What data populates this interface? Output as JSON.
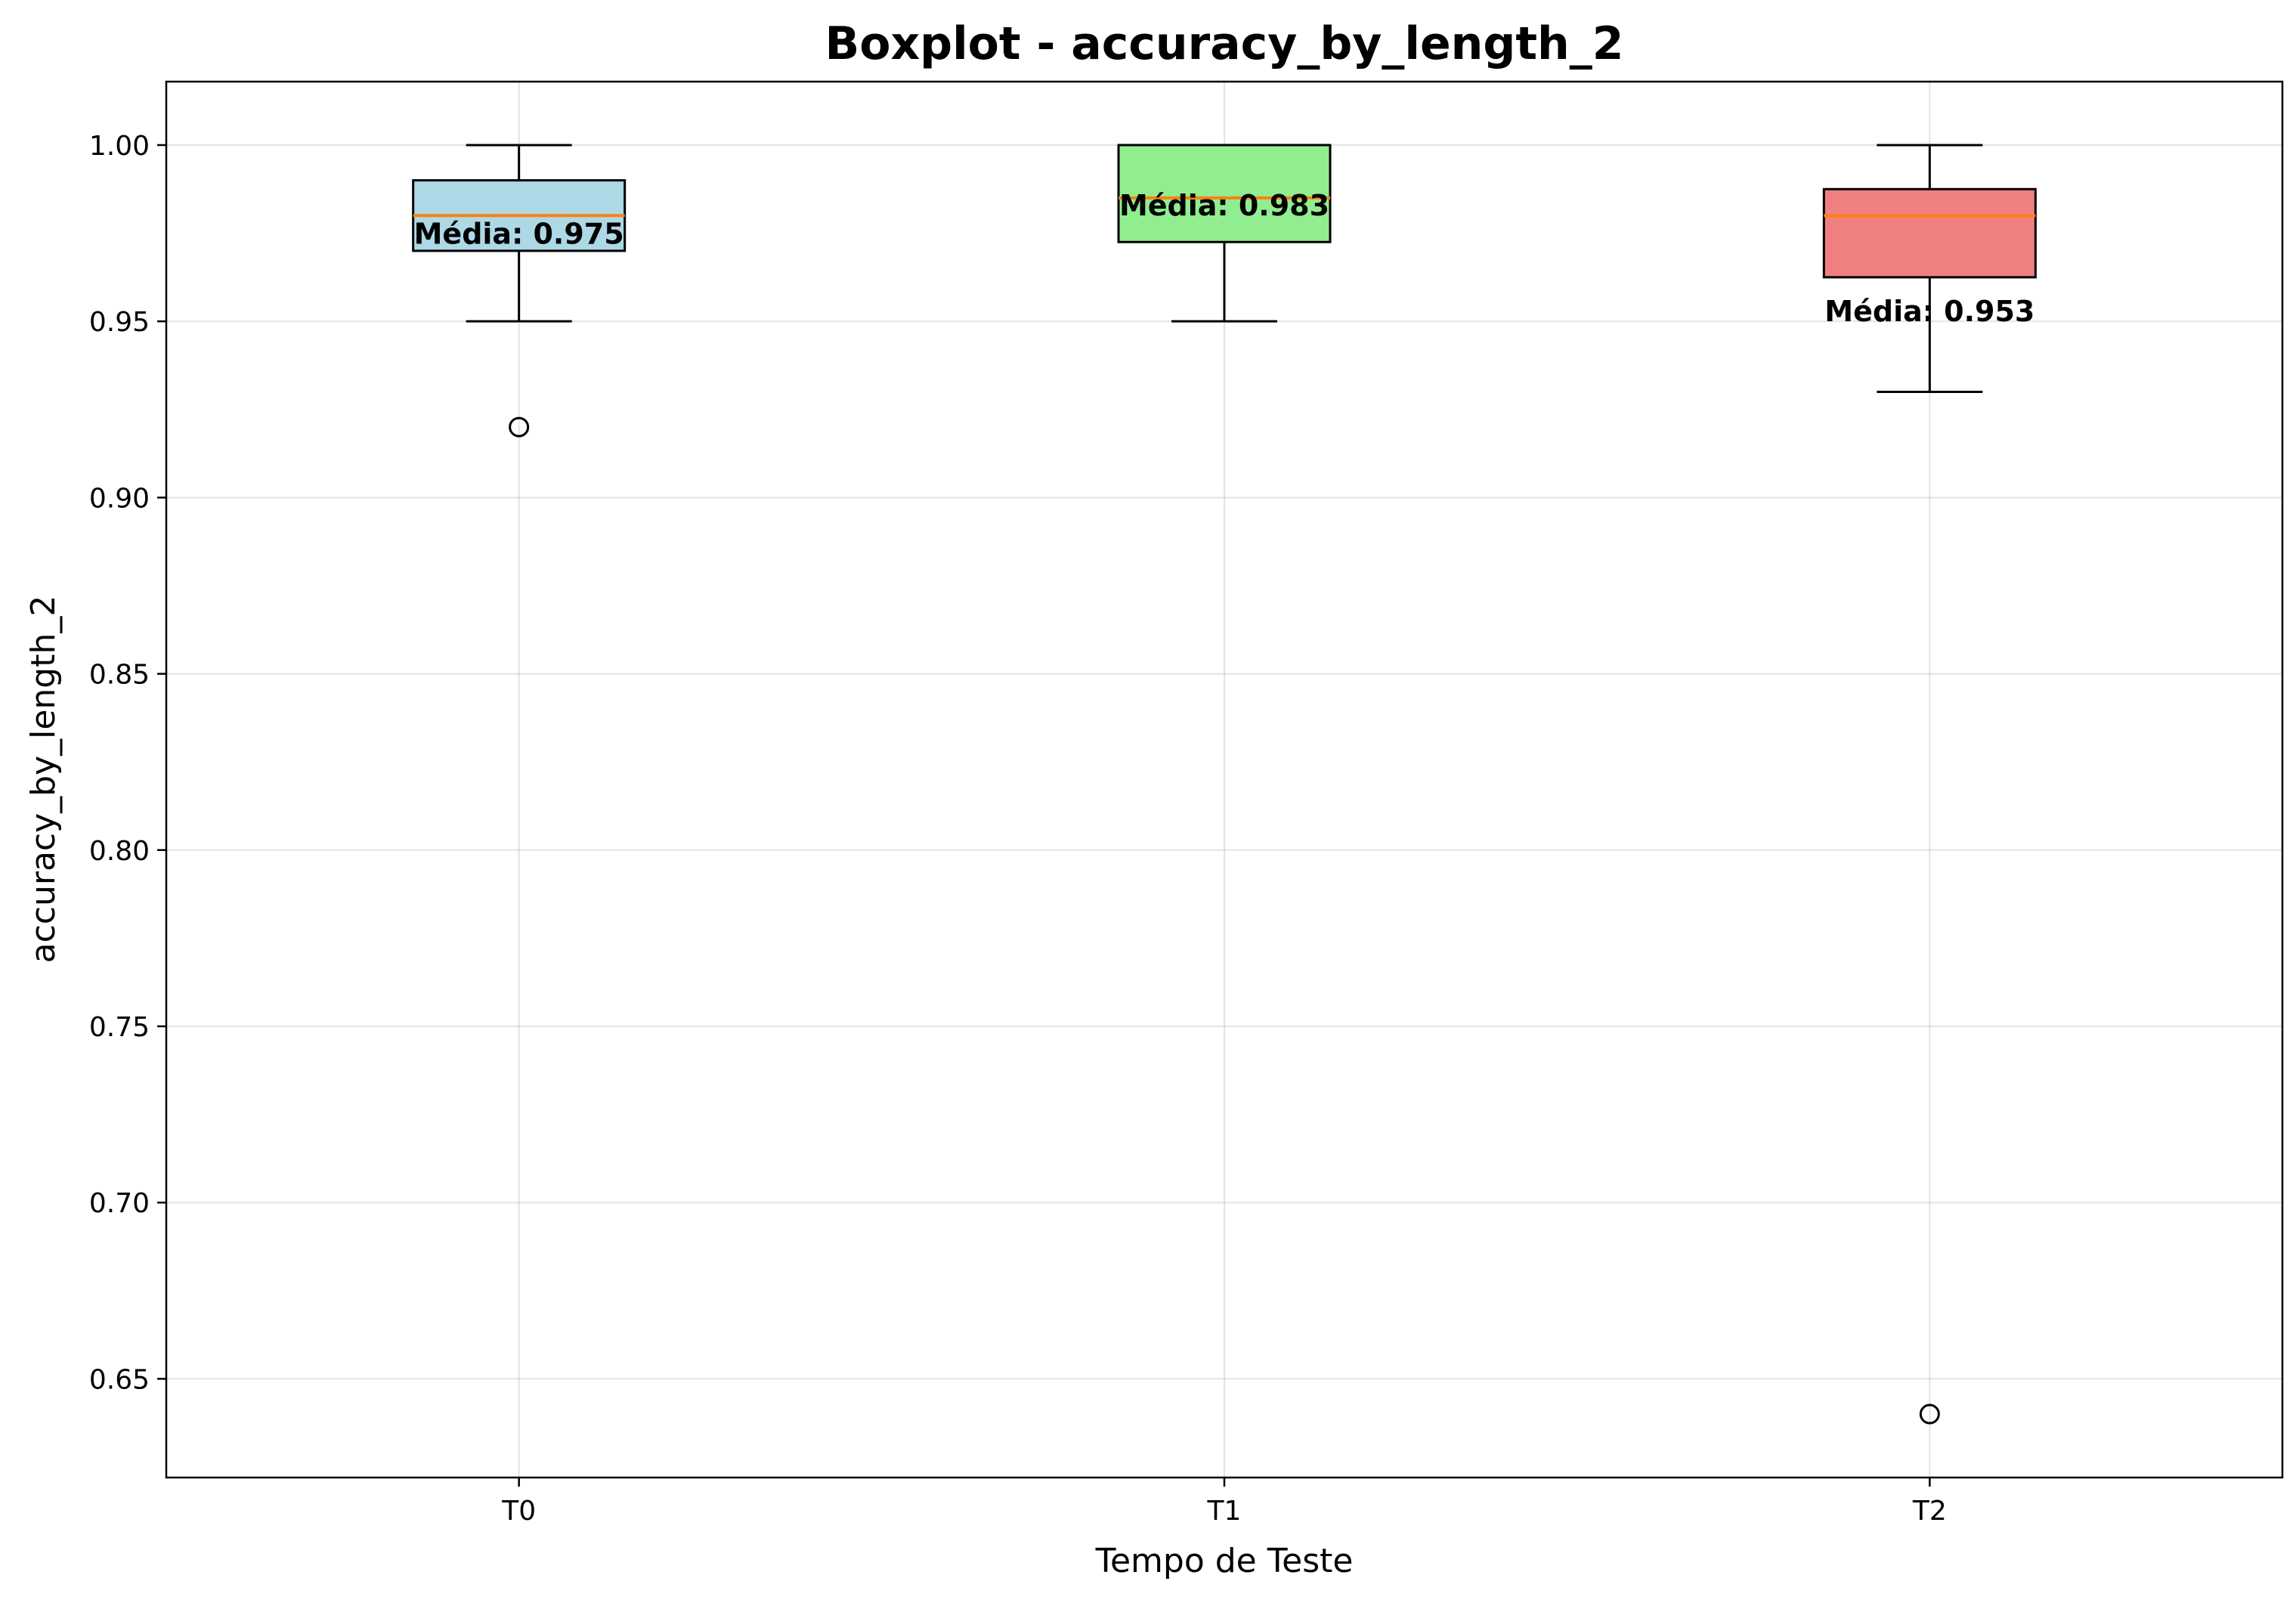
{
  "chart_data": {
    "type": "boxplot",
    "title": "Boxplot - accuracy_by_length_2",
    "xlabel": "Tempo de Teste",
    "ylabel": "accuracy_by_length_2",
    "ylim": [
      0.622,
      1.018
    ],
    "yticks": [
      "0.65",
      "0.70",
      "0.75",
      "0.80",
      "0.85",
      "0.90",
      "0.95",
      "1.00"
    ],
    "grid": true,
    "boxes": [
      {
        "category": "T0",
        "whisker_low": 0.95,
        "q1": 0.97,
        "median": 0.98,
        "q3": 0.99,
        "whisker_high": 1.0,
        "outliers": [
          0.92
        ],
        "mean": 0.975,
        "mean_label": "Média: 0.975",
        "color": "#add8e6"
      },
      {
        "category": "T1",
        "whisker_low": 0.95,
        "q1": 0.9725,
        "median": 0.985,
        "q3": 1.0,
        "whisker_high": 1.0,
        "outliers": [],
        "mean": 0.983,
        "mean_label": "Média: 0.983",
        "color": "#90ee90"
      },
      {
        "category": "T2",
        "whisker_low": 0.93,
        "q1": 0.9625,
        "median": 0.98,
        "q3": 0.9875,
        "whisker_high": 1.0,
        "outliers": [
          0.64
        ],
        "mean": 0.953,
        "mean_label": "Média: 0.953",
        "color": "#f08080"
      }
    ],
    "median_color": "#ff7f0e"
  }
}
